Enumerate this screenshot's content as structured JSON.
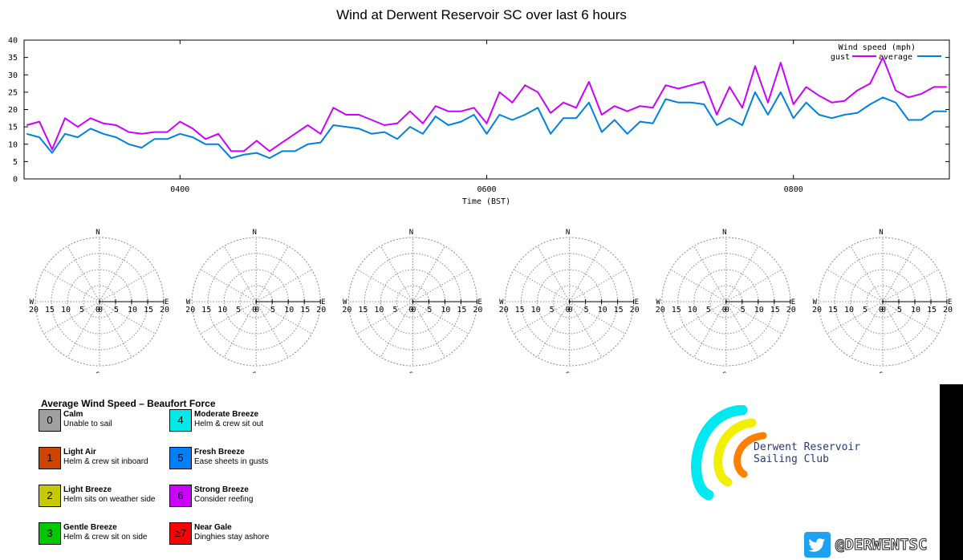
{
  "chart_data": [
    {
      "type": "line",
      "title": "Wind at Derwent Reservoir SC over last 6 hours",
      "legend_title": "Wind speed (mph)",
      "legend_position": "top-right",
      "xlabel": "Time (BST)",
      "ylabel": "",
      "x_range": [
        "02:59",
        "09:01"
      ],
      "x_ticks": [
        "0400",
        "0600",
        "0800"
      ],
      "ylim": [
        0,
        40
      ],
      "y_ticks": [
        0,
        5,
        10,
        15,
        20,
        25,
        30,
        35,
        40
      ],
      "grid": false,
      "series": [
        {
          "name": "gust",
          "color": "#cc00ff",
          "x": [
            "03:00",
            "03:05",
            "03:10",
            "03:15",
            "03:20",
            "03:25",
            "03:30",
            "03:35",
            "03:40",
            "03:45",
            "03:50",
            "03:55",
            "04:00",
            "04:05",
            "04:10",
            "04:15",
            "04:20",
            "04:25",
            "04:30",
            "04:35",
            "04:40",
            "04:45",
            "04:50",
            "04:55",
            "05:00",
            "05:05",
            "05:10",
            "05:15",
            "05:20",
            "05:25",
            "05:30",
            "05:35",
            "05:40",
            "05:45",
            "05:50",
            "05:55",
            "06:00",
            "06:05",
            "06:10",
            "06:15",
            "06:20",
            "06:25",
            "06:30",
            "06:35",
            "06:40",
            "06:45",
            "06:50",
            "06:55",
            "07:00",
            "07:05",
            "07:10",
            "07:15",
            "07:20",
            "07:25",
            "07:30",
            "07:35",
            "07:40",
            "07:45",
            "07:50",
            "07:55",
            "08:00",
            "08:05",
            "08:10",
            "08:15",
            "08:20",
            "08:25",
            "08:30",
            "08:35",
            "08:40",
            "08:45",
            "08:50",
            "08:55",
            "09:00"
          ],
          "values": [
            15.5,
            16.5,
            8.5,
            17.5,
            15,
            17.5,
            16,
            15.5,
            13.5,
            13,
            13.5,
            13.5,
            16.5,
            14.5,
            11.5,
            13,
            8,
            8,
            11,
            8,
            10.5,
            13,
            15.5,
            13,
            20.5,
            18.5,
            18.5,
            17,
            15.5,
            16,
            19.5,
            16,
            21,
            19.5,
            19.5,
            20.5,
            16,
            25,
            22,
            27,
            25,
            19,
            22,
            20.5,
            28,
            18.5,
            21,
            19.5,
            21,
            20.5,
            27,
            26,
            27,
            28,
            18.5,
            26.5,
            20.5,
            32.5,
            22,
            33.5,
            21.5,
            26.5,
            24,
            22,
            22.5,
            25.5,
            27.5,
            35,
            25.5,
            23.5,
            24.5,
            26.5,
            26.5
          ]
        },
        {
          "name": "average",
          "color": "#0080e0",
          "x": [
            "03:00",
            "03:05",
            "03:10",
            "03:15",
            "03:20",
            "03:25",
            "03:30",
            "03:35",
            "03:40",
            "03:45",
            "03:50",
            "03:55",
            "04:00",
            "04:05",
            "04:10",
            "04:15",
            "04:20",
            "04:25",
            "04:30",
            "04:35",
            "04:40",
            "04:45",
            "04:50",
            "04:55",
            "05:00",
            "05:05",
            "05:10",
            "05:15",
            "05:20",
            "05:25",
            "05:30",
            "05:35",
            "05:40",
            "05:45",
            "05:50",
            "05:55",
            "06:00",
            "06:05",
            "06:10",
            "06:15",
            "06:20",
            "06:25",
            "06:30",
            "06:35",
            "06:40",
            "06:45",
            "06:50",
            "06:55",
            "07:00",
            "07:05",
            "07:10",
            "07:15",
            "07:20",
            "07:25",
            "07:30",
            "07:35",
            "07:40",
            "07:45",
            "07:50",
            "07:55",
            "08:00",
            "08:05",
            "08:10",
            "08:15",
            "08:20",
            "08:25",
            "08:30",
            "08:35",
            "08:40",
            "08:45",
            "08:50",
            "08:55",
            "09:00"
          ],
          "values": [
            13,
            12,
            7.5,
            13,
            12,
            14.5,
            13,
            12,
            10,
            9,
            11.5,
            11.5,
            13,
            12,
            10,
            10,
            6,
            7,
            7.5,
            6,
            8,
            8,
            10,
            10.5,
            15.5,
            15,
            14.5,
            13,
            13.5,
            11.5,
            15,
            13,
            18,
            15.5,
            16.5,
            18.5,
            13,
            18.5,
            17,
            18.5,
            20.5,
            13,
            17.5,
            17.5,
            22,
            13.5,
            17,
            13,
            16.5,
            16,
            23,
            22,
            22,
            21.5,
            15.5,
            17.5,
            15.5,
            25,
            18.5,
            25,
            17.5,
            22,
            18.5,
            17.5,
            18.5,
            19,
            21.5,
            23.5,
            22,
            17,
            17,
            19.5,
            19.5
          ]
        }
      ]
    },
    {
      "type": "polar",
      "count": 6,
      "directions": [
        "N",
        "E",
        "S",
        "W"
      ],
      "radial_ticks_east": [
        "0",
        "5",
        "10",
        "15",
        "20"
      ],
      "radial_ticks_west": [
        "20",
        "15",
        "10",
        "5",
        "0"
      ],
      "rmax": 20,
      "grid": true,
      "series": []
    }
  ],
  "beaufort_legend": {
    "title": "Average Wind Speed – Beaufort Force",
    "items": [
      {
        "force": "0",
        "name": "Calm",
        "desc": "Unable to sail",
        "color": "#a0a0a0"
      },
      {
        "force": "1",
        "name": "Light Air",
        "desc": "Helm & crew sit inboard",
        "color": "#cc4400"
      },
      {
        "force": "2",
        "name": "Light Breeze",
        "desc": "Helm sits on weather side",
        "color": "#c8c800"
      },
      {
        "force": "3",
        "name": "Gentle Breeze",
        "desc": "Helm & crew sit on side",
        "color": "#00c800"
      },
      {
        "force": "4",
        "name": "Moderate Breeze",
        "desc": "Helm & crew sit out",
        "color": "#00e8e8"
      },
      {
        "force": "5",
        "name": "Fresh Breeze",
        "desc": "Ease sheets in gusts",
        "color": "#0080ff"
      },
      {
        "force": "6",
        "name": "Strong Breeze",
        "desc": "Consider reefing",
        "color": "#cc00ff"
      },
      {
        "force": "≥7",
        "name": "Near Gale",
        "desc": "Dinghies stay ashore",
        "color": "#ff0000"
      }
    ]
  },
  "logo": {
    "line1": "Derwent Reservoir",
    "line2": "Sailing Club",
    "colors": [
      "#00e8f0",
      "#f0f000",
      "#ff8000"
    ]
  },
  "twitter": {
    "handle": "@DERWENTSC",
    "icon": "twitter-bird-icon",
    "color": "#1da1f2"
  }
}
